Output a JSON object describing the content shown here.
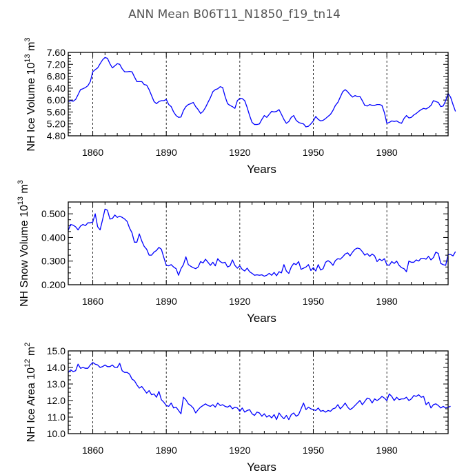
{
  "title": "ANN Mean  B06T11_N1850_f19_tn14",
  "chart_data": [
    {
      "type": "line",
      "id": "ice-volume",
      "ylabel_main": "NH Ice Volume 10",
      "ylabel_exp": "13",
      "ylabel_unit": " m",
      "ylabel_unit_exp": "3",
      "xlabel": "Years",
      "xlim": [
        1850,
        2005
      ],
      "ylim": [
        4.8,
        7.6
      ],
      "yticks": [
        4.8,
        5.2,
        5.6,
        6.0,
        6.4,
        6.8,
        7.2,
        7.6
      ],
      "ytick_labels": [
        "4.80",
        "5.20",
        "5.60",
        "6.00",
        "6.40",
        "6.80",
        "7.20",
        "7.60"
      ],
      "xticks": [
        1860,
        1890,
        1920,
        1950,
        1980
      ],
      "xtick_labels": [
        "1860",
        "1890",
        "1920",
        "1950",
        "1980"
      ],
      "grid_x_dashed": true,
      "color": "#0000ff",
      "x_start": 1850,
      "values": [
        5.95,
        5.98,
        5.96,
        6.02,
        6.18,
        6.35,
        6.38,
        6.42,
        6.48,
        6.62,
        6.95,
        7.02,
        7.08,
        7.22,
        7.35,
        7.43,
        7.4,
        7.22,
        7.08,
        7.15,
        7.22,
        7.2,
        7.05,
        6.95,
        6.95,
        6.96,
        6.95,
        6.78,
        6.62,
        6.62,
        6.62,
        6.52,
        6.5,
        6.35,
        6.15,
        5.95,
        5.88,
        5.95,
        5.98,
        5.98,
        6.02,
        5.85,
        5.78,
        5.6,
        5.48,
        5.42,
        5.43,
        5.65,
        5.78,
        5.85,
        5.88,
        5.92,
        5.78,
        5.68,
        5.55,
        5.62,
        5.75,
        5.92,
        6.08,
        6.28,
        6.35,
        6.38,
        6.45,
        6.42,
        6.12,
        5.88,
        5.82,
        5.78,
        5.72,
        5.98,
        6.06,
        6.05,
        5.98,
        5.75,
        5.48,
        5.25,
        5.18,
        5.18,
        5.2,
        5.35,
        5.48,
        5.42,
        5.52,
        5.62,
        5.6,
        5.62,
        5.68,
        5.52,
        5.35,
        5.22,
        5.28,
        5.42,
        5.48,
        5.32,
        5.25,
        5.22,
        5.2,
        5.1,
        5.12,
        5.2,
        5.3,
        5.45,
        5.35,
        5.3,
        5.32,
        5.38,
        5.45,
        5.52,
        5.65,
        5.82,
        5.92,
        6.1,
        6.28,
        6.35,
        6.28,
        6.18,
        6.1,
        6.15,
        6.12,
        6.12,
        5.98,
        5.82,
        5.8,
        5.85,
        5.82,
        5.82,
        5.85,
        5.85,
        5.82,
        5.58,
        5.22,
        5.25,
        5.3,
        5.28,
        5.3,
        5.25,
        5.22,
        5.38,
        5.48,
        5.4,
        5.42,
        5.5,
        5.55,
        5.62,
        5.68,
        5.72,
        5.7,
        5.75,
        5.82,
        5.98,
        5.95,
        5.92,
        5.78,
        5.8,
        5.98,
        6.22,
        6.1,
        5.85,
        5.62
      ]
    },
    {
      "type": "line",
      "id": "snow-volume",
      "ylabel_main": "NH Snow Volume 10",
      "ylabel_exp": "13",
      "ylabel_unit": " m",
      "ylabel_unit_exp": "3",
      "xlabel": "Years",
      "xlim": [
        1850,
        2005
      ],
      "ylim": [
        0.2,
        0.55
      ],
      "yticks": [
        0.2,
        0.3,
        0.4,
        0.5
      ],
      "ytick_labels": [
        "0.200",
        "0.300",
        "0.400",
        "0.500"
      ],
      "xticks": [
        1860,
        1890,
        1920,
        1950,
        1980
      ],
      "xtick_labels": [
        "1860",
        "1890",
        "1920",
        "1950",
        "1980"
      ],
      "grid_x_dashed": true,
      "color": "#0000ff",
      "x_start": 1850,
      "values": [
        0.43,
        0.455,
        0.452,
        0.445,
        0.432,
        0.448,
        0.455,
        0.45,
        0.462,
        0.462,
        0.465,
        0.5,
        0.445,
        0.432,
        0.475,
        0.52,
        0.515,
        0.478,
        0.48,
        0.495,
        0.485,
        0.49,
        0.485,
        0.478,
        0.468,
        0.44,
        0.42,
        0.38,
        0.38,
        0.415,
        0.385,
        0.362,
        0.35,
        0.325,
        0.325,
        0.338,
        0.345,
        0.358,
        0.35,
        0.315,
        0.282,
        0.28,
        0.285,
        0.275,
        0.268,
        0.24,
        0.268,
        0.285,
        0.318,
        0.285,
        0.278,
        0.272,
        0.268,
        0.275,
        0.298,
        0.292,
        0.308,
        0.295,
        0.282,
        0.295,
        0.28,
        0.31,
        0.298,
        0.292,
        0.295,
        0.275,
        0.28,
        0.305,
        0.282,
        0.27,
        0.28,
        0.265,
        0.258,
        0.27,
        0.255,
        0.248,
        0.24,
        0.242,
        0.24,
        0.242,
        0.236,
        0.24,
        0.248,
        0.24,
        0.252,
        0.238,
        0.255,
        0.25,
        0.285,
        0.258,
        0.248,
        0.275,
        0.29,
        0.285,
        0.298,
        0.265,
        0.27,
        0.275,
        0.285,
        0.26,
        0.272,
        0.258,
        0.285,
        0.262,
        0.268,
        0.295,
        0.302,
        0.295,
        0.282,
        0.302,
        0.31,
        0.308,
        0.318,
        0.33,
        0.335,
        0.322,
        0.338,
        0.35,
        0.355,
        0.352,
        0.34,
        0.325,
        0.332,
        0.32,
        0.33,
        0.322,
        0.298,
        0.308,
        0.302,
        0.31,
        0.285,
        0.282,
        0.298,
        0.29,
        0.3,
        0.282,
        0.272,
        0.268,
        0.255,
        0.3,
        0.295,
        0.295,
        0.305,
        0.3,
        0.312,
        0.312,
        0.308,
        0.32,
        0.305,
        0.315,
        0.338,
        0.332,
        0.29,
        0.285,
        0.282,
        0.328,
        0.328,
        0.322,
        0.34
      ]
    },
    {
      "type": "line",
      "id": "ice-area",
      "ylabel_main": "NH Ice Area 10",
      "ylabel_exp": "12",
      "ylabel_unit": " m",
      "ylabel_unit_exp": "2",
      "xlabel": "Years",
      "xlim": [
        1850,
        2005
      ],
      "ylim": [
        10.0,
        15.0
      ],
      "yticks": [
        10.0,
        11.0,
        12.0,
        13.0,
        14.0,
        15.0
      ],
      "ytick_labels": [
        "10.0",
        "11.0",
        "12.0",
        "13.0",
        "14.0",
        "15.0"
      ],
      "xticks": [
        1860,
        1890,
        1920,
        1950,
        1980
      ],
      "xtick_labels": [
        "1860",
        "1890",
        "1920",
        "1950",
        "1980"
      ],
      "grid_x_dashed": true,
      "color": "#0000ff",
      "x_start": 1850,
      "values": [
        13.7,
        13.85,
        13.75,
        13.8,
        14.2,
        13.95,
        14.0,
        13.95,
        13.95,
        14.15,
        14.3,
        14.2,
        14.15,
        14.0,
        14.05,
        14.15,
        14.05,
        14.05,
        14.15,
        14.0,
        14.0,
        14.25,
        13.8,
        13.7,
        13.7,
        13.6,
        13.3,
        13.2,
        12.95,
        12.75,
        12.85,
        12.65,
        12.45,
        12.6,
        12.35,
        12.4,
        12.2,
        12.55,
        12.05,
        11.9,
        11.7,
        11.65,
        11.85,
        11.55,
        11.6,
        11.4,
        11.2,
        12.2,
        12.05,
        11.8,
        11.7,
        11.55,
        11.25,
        11.45,
        11.6,
        11.7,
        11.8,
        11.7,
        11.65,
        11.75,
        11.6,
        11.85,
        11.7,
        11.75,
        11.65,
        11.6,
        11.7,
        11.5,
        11.6,
        11.55,
        11.35,
        11.55,
        11.3,
        11.4,
        11.45,
        11.2,
        11.1,
        11.3,
        11.25,
        11.05,
        11.2,
        11.0,
        11.1,
        10.95,
        11.15,
        10.85,
        11.25,
        11.05,
        10.9,
        11.1,
        10.85,
        11.15,
        11.25,
        11.05,
        11.15,
        11.5,
        11.85,
        11.45,
        11.6,
        11.5,
        11.45,
        11.4,
        11.55,
        11.35,
        11.4,
        11.3,
        11.4,
        11.35,
        11.5,
        11.55,
        11.75,
        11.5,
        11.65,
        11.85,
        11.6,
        11.45,
        11.55,
        11.7,
        11.85,
        12.0,
        11.75,
        11.95,
        12.15,
        12.1,
        11.85,
        12.1,
        12.0,
        12.1,
        12.25,
        12.15,
        12.0,
        12.4,
        12.25,
        12.0,
        12.2,
        12.05,
        12.1,
        12.1,
        12.2,
        12.0,
        12.1,
        12.3,
        12.25,
        12.35,
        12.2,
        12.25,
        11.75,
        11.9,
        11.55,
        11.75,
        11.8,
        11.7,
        11.55,
        11.65,
        11.55,
        11.6,
        11.65
      ]
    }
  ]
}
